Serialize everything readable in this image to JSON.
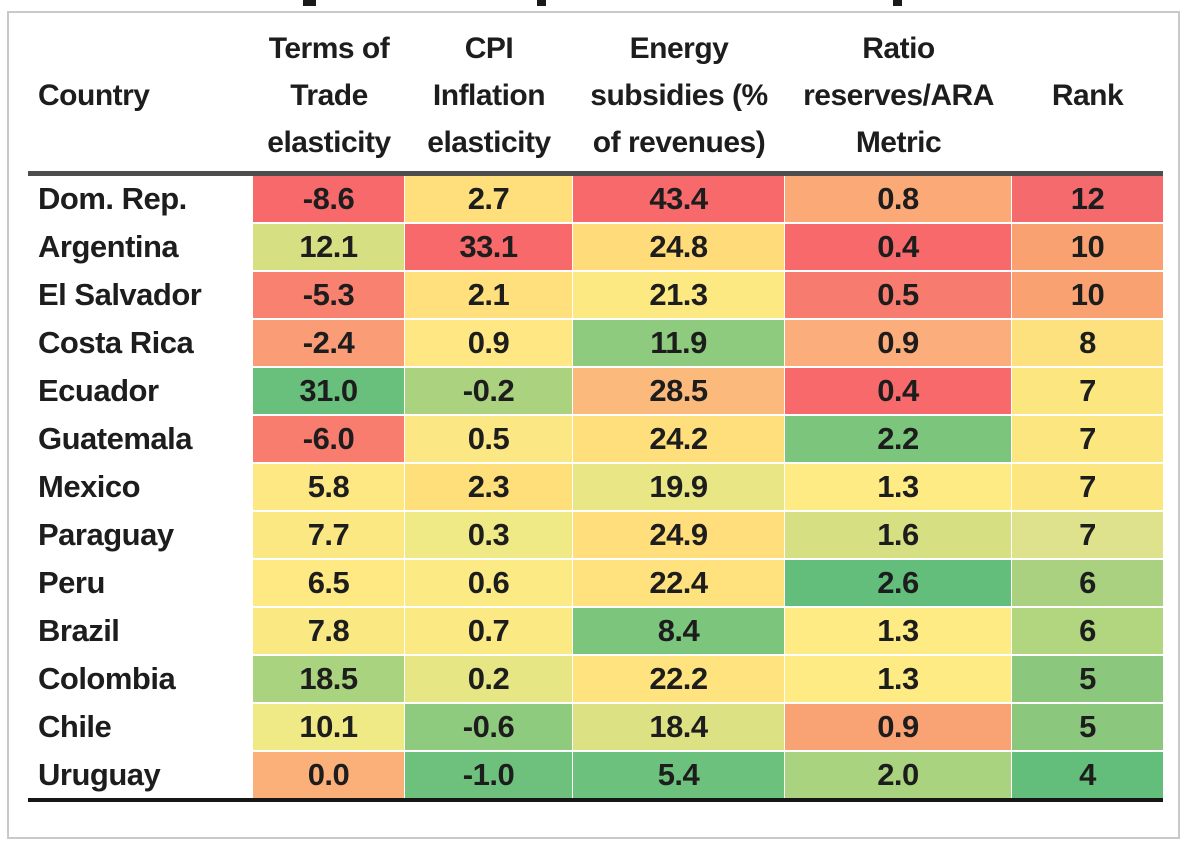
{
  "table": {
    "columns": [
      {
        "key": "country",
        "label": "Country"
      },
      {
        "key": "tot",
        "label": "Terms of\nTrade\nelasticity"
      },
      {
        "key": "cpi",
        "label": "CPI\nInflation\nelasticity"
      },
      {
        "key": "energy",
        "label": "Energy\nsubsidies (%\nof revenues)"
      },
      {
        "key": "ratio",
        "label": "Ratio\nreserves/ARA\nMetric"
      },
      {
        "key": "rank",
        "label": "Rank"
      }
    ],
    "rows": [
      {
        "country": "Dom. Rep.",
        "cells": [
          {
            "v": "-8.6",
            "c": "#F8696B"
          },
          {
            "v": "2.7",
            "c": "#FFDF7B"
          },
          {
            "v": "43.4",
            "c": "#F8696B"
          },
          {
            "v": "0.8",
            "c": "#FBA977"
          },
          {
            "v": "12",
            "c": "#F56A6D"
          }
        ]
      },
      {
        "country": "Argentina",
        "cells": [
          {
            "v": "12.1",
            "c": "#D6DF82"
          },
          {
            "v": "33.1",
            "c": "#F8696B"
          },
          {
            "v": "24.8",
            "c": "#FFDC79"
          },
          {
            "v": "0.4",
            "c": "#F8696B"
          },
          {
            "v": "10",
            "c": "#F9A170"
          }
        ]
      },
      {
        "country": "El Salvador",
        "cells": [
          {
            "v": "-5.3",
            "c": "#F9816F"
          },
          {
            "v": "2.1",
            "c": "#FFE07C"
          },
          {
            "v": "21.3",
            "c": "#FDE982"
          },
          {
            "v": "0.5",
            "c": "#F87B70"
          },
          {
            "v": "10",
            "c": "#F9A170"
          }
        ]
      },
      {
        "country": "Costa Rica",
        "cells": [
          {
            "v": "-2.4",
            "c": "#FA9C76"
          },
          {
            "v": "0.9",
            "c": "#FFE883"
          },
          {
            "v": "11.9",
            "c": "#8FCB7E"
          },
          {
            "v": "0.9",
            "c": "#FBAE7B"
          },
          {
            "v": "8",
            "c": "#FDE17E"
          }
        ]
      },
      {
        "country": "Ecuador",
        "cells": [
          {
            "v": "31.0",
            "c": "#68C07C"
          },
          {
            "v": "-0.2",
            "c": "#ABD37F"
          },
          {
            "v": "28.5",
            "c": "#FBBA7C"
          },
          {
            "v": "0.4",
            "c": "#F8696B"
          },
          {
            "v": "7",
            "c": "#FBE680"
          }
        ]
      },
      {
        "country": "Guatemala",
        "cells": [
          {
            "v": "-6.0",
            "c": "#F87D6F"
          },
          {
            "v": "0.5",
            "c": "#FBE884"
          },
          {
            "v": "24.2",
            "c": "#FFDF7C"
          },
          {
            "v": "2.2",
            "c": "#7CC57D"
          },
          {
            "v": "7",
            "c": "#FBE680"
          }
        ]
      },
      {
        "country": "Mexico",
        "cells": [
          {
            "v": "5.8",
            "c": "#FEE883"
          },
          {
            "v": "2.3",
            "c": "#FFDF7A"
          },
          {
            "v": "19.9",
            "c": "#E8E685"
          },
          {
            "v": "1.3",
            "c": "#FFEB84"
          },
          {
            "v": "7",
            "c": "#FBE680"
          }
        ]
      },
      {
        "country": "Paraguay",
        "cells": [
          {
            "v": "7.7",
            "c": "#FBE883"
          },
          {
            "v": "0.3",
            "c": "#EFEA86"
          },
          {
            "v": "24.9",
            "c": "#FFDE7B"
          },
          {
            "v": "1.6",
            "c": "#D6DF82"
          },
          {
            "v": "7",
            "c": "#DEE28D"
          }
        ]
      },
      {
        "country": "Peru",
        "cells": [
          {
            "v": "6.5",
            "c": "#FEE983"
          },
          {
            "v": "0.6",
            "c": "#FCEA85"
          },
          {
            "v": "22.4",
            "c": "#FFE27E"
          },
          {
            "v": "2.6",
            "c": "#63BE7B"
          },
          {
            "v": "6",
            "c": "#A9D17F"
          }
        ]
      },
      {
        "country": "Brazil",
        "cells": [
          {
            "v": "7.8",
            "c": "#FAE883"
          },
          {
            "v": "0.7",
            "c": "#FBE984"
          },
          {
            "v": "8.4",
            "c": "#7BC57D"
          },
          {
            "v": "1.3",
            "c": "#FFEB84"
          },
          {
            "v": "6",
            "c": "#B2D580"
          }
        ]
      },
      {
        "country": "Colombia",
        "cells": [
          {
            "v": "18.5",
            "c": "#A9D37F"
          },
          {
            "v": "0.2",
            "c": "#E7E685"
          },
          {
            "v": "22.2",
            "c": "#FFE37F"
          },
          {
            "v": "1.3",
            "c": "#FFEB84"
          },
          {
            "v": "5",
            "c": "#8BC87E"
          }
        ]
      },
      {
        "country": "Chile",
        "cells": [
          {
            "v": "10.1",
            "c": "#EFE986"
          },
          {
            "v": "-0.6",
            "c": "#8FCB7E"
          },
          {
            "v": "18.4",
            "c": "#DCE283"
          },
          {
            "v": "0.9",
            "c": "#F9A273"
          },
          {
            "v": "5",
            "c": "#8BC87E"
          }
        ]
      },
      {
        "country": "Uruguay",
        "cells": [
          {
            "v": "0.0",
            "c": "#FBB07A"
          },
          {
            "v": "-1.0",
            "c": "#6EC17D"
          },
          {
            "v": "5.4",
            "c": "#6CC17D"
          },
          {
            "v": "2.0",
            "c": "#A9D37F"
          },
          {
            "v": "4",
            "c": "#63BE7B"
          }
        ]
      }
    ]
  },
  "chart_data": {
    "type": "heatmap",
    "title": "",
    "columns": [
      "Country",
      "Terms of Trade elasticity",
      "CPI Inflation elasticity",
      "Energy subsidies (% of revenues)",
      "Ratio reserves/ARA Metric",
      "Rank"
    ],
    "rows": [
      {
        "country": "Dom. Rep.",
        "terms_of_trade_elasticity": -8.6,
        "cpi_inflation_elasticity": 2.7,
        "energy_subsidies_pct_revenues": 43.4,
        "ratio_reserves_ara_metric": 0.8,
        "rank": 12
      },
      {
        "country": "Argentina",
        "terms_of_trade_elasticity": 12.1,
        "cpi_inflation_elasticity": 33.1,
        "energy_subsidies_pct_revenues": 24.8,
        "ratio_reserves_ara_metric": 0.4,
        "rank": 10
      },
      {
        "country": "El Salvador",
        "terms_of_trade_elasticity": -5.3,
        "cpi_inflation_elasticity": 2.1,
        "energy_subsidies_pct_revenues": 21.3,
        "ratio_reserves_ara_metric": 0.5,
        "rank": 10
      },
      {
        "country": "Costa Rica",
        "terms_of_trade_elasticity": -2.4,
        "cpi_inflation_elasticity": 0.9,
        "energy_subsidies_pct_revenues": 11.9,
        "ratio_reserves_ara_metric": 0.9,
        "rank": 8
      },
      {
        "country": "Ecuador",
        "terms_of_trade_elasticity": 31.0,
        "cpi_inflation_elasticity": -0.2,
        "energy_subsidies_pct_revenues": 28.5,
        "ratio_reserves_ara_metric": 0.4,
        "rank": 7
      },
      {
        "country": "Guatemala",
        "terms_of_trade_elasticity": -6.0,
        "cpi_inflation_elasticity": 0.5,
        "energy_subsidies_pct_revenues": 24.2,
        "ratio_reserves_ara_metric": 2.2,
        "rank": 7
      },
      {
        "country": "Mexico",
        "terms_of_trade_elasticity": 5.8,
        "cpi_inflation_elasticity": 2.3,
        "energy_subsidies_pct_revenues": 19.9,
        "ratio_reserves_ara_metric": 1.3,
        "rank": 7
      },
      {
        "country": "Paraguay",
        "terms_of_trade_elasticity": 7.7,
        "cpi_inflation_elasticity": 0.3,
        "energy_subsidies_pct_revenues": 24.9,
        "ratio_reserves_ara_metric": 1.6,
        "rank": 7
      },
      {
        "country": "Peru",
        "terms_of_trade_elasticity": 6.5,
        "cpi_inflation_elasticity": 0.6,
        "energy_subsidies_pct_revenues": 22.4,
        "ratio_reserves_ara_metric": 2.6,
        "rank": 6
      },
      {
        "country": "Brazil",
        "terms_of_trade_elasticity": 7.8,
        "cpi_inflation_elasticity": 0.7,
        "energy_subsidies_pct_revenues": 8.4,
        "ratio_reserves_ara_metric": 1.3,
        "rank": 6
      },
      {
        "country": "Colombia",
        "terms_of_trade_elasticity": 18.5,
        "cpi_inflation_elasticity": 0.2,
        "energy_subsidies_pct_revenues": 22.2,
        "ratio_reserves_ara_metric": 1.3,
        "rank": 5
      },
      {
        "country": "Chile",
        "terms_of_trade_elasticity": 10.1,
        "cpi_inflation_elasticity": -0.6,
        "energy_subsidies_pct_revenues": 18.4,
        "ratio_reserves_ara_metric": 0.9,
        "rank": 5
      },
      {
        "country": "Uruguay",
        "terms_of_trade_elasticity": 0.0,
        "cpi_inflation_elasticity": -1.0,
        "energy_subsidies_pct_revenues": 5.4,
        "ratio_reserves_ara_metric": 2.0,
        "rank": 4
      }
    ],
    "legend_position": "none",
    "grid": false,
    "color_scale": {
      "low_bad": "#F8696B",
      "mid": "#FFEB84",
      "high_good": "#63BE7B",
      "note": "Excel-style red-yellow-green conditional formatting per column; red = worst, green = best"
    }
  }
}
